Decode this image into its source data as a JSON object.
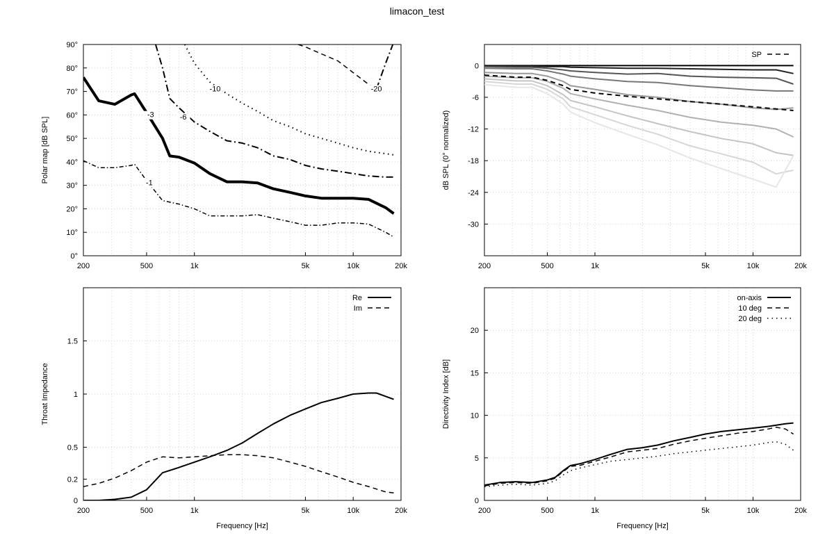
{
  "page": {
    "title": "limacon_test"
  },
  "colors": {
    "line": "#000000",
    "grid": "#bbbbbb",
    "background": "#ffffff"
  },
  "chart_data": [
    {
      "id": "polar_map",
      "type": "line",
      "subtype": "contour",
      "xlabel": "",
      "ylabel": "Polar map [dB SPL]",
      "xscale": "log",
      "xlim": [
        200,
        20000
      ],
      "ylim": [
        0,
        90
      ],
      "xticks": [
        200,
        500,
        1000,
        5000,
        10000,
        20000
      ],
      "xtick_labels": [
        "200",
        "500",
        "1k",
        "5k",
        "10k",
        "20k"
      ],
      "yticks": [
        0,
        10,
        20,
        30,
        40,
        50,
        60,
        70,
        80,
        90
      ],
      "ytick_labels": [
        "0°",
        "10°",
        "20°",
        "30°",
        "40°",
        "50°",
        "60°",
        "70°",
        "80°",
        "90°"
      ],
      "grid": true,
      "series": [
        {
          "label": "-1",
          "style": "dashdot-fine",
          "width": 1.5,
          "x": [
            200,
            250,
            315,
            400,
            420,
            500,
            630,
            800,
            1000,
            1250,
            1600,
            2000,
            2500,
            3150,
            4000,
            5000,
            6300,
            8000,
            10000,
            12500,
            16000,
            18000
          ],
          "y": [
            40.5,
            37.5,
            37.5,
            38.5,
            39,
            32,
            23.5,
            22,
            20,
            17,
            17,
            17,
            17.5,
            16,
            14.5,
            13,
            13,
            14,
            14,
            13.5,
            10,
            8
          ]
        },
        {
          "label": "-3",
          "style": "solid",
          "width": 4,
          "x": [
            200,
            250,
            315,
            400,
            420,
            500,
            630,
            700,
            800,
            1000,
            1250,
            1600,
            2000,
            2500,
            3150,
            4000,
            5000,
            6300,
            8000,
            10000,
            12500,
            16000,
            18000
          ],
          "y": [
            76,
            66,
            64.5,
            68.5,
            69,
            61,
            50,
            42.5,
            42,
            39.5,
            35,
            31.5,
            31.5,
            31,
            28.5,
            27,
            25.5,
            24.5,
            24.5,
            24.5,
            24,
            20.5,
            18
          ]
        },
        {
          "label": "-6",
          "style": "dashdot",
          "width": 2,
          "x": [
            570,
            630,
            700,
            800,
            1000,
            1250,
            1600,
            2000,
            2500,
            3150,
            4000,
            5000,
            6300,
            8000,
            10000,
            12500,
            16000,
            18000
          ],
          "y": [
            90,
            80,
            67,
            63,
            57,
            53,
            49,
            48,
            46,
            42.5,
            41,
            38.5,
            37,
            36,
            35,
            34,
            33.5,
            33.5
          ]
        },
        {
          "label": "-10",
          "style": "dotted",
          "width": 2,
          "x": [
            870,
            1000,
            1250,
            1600,
            2000,
            2500,
            3150,
            4000,
            5000,
            6300,
            8000,
            10000,
            12500,
            16000,
            18000
          ],
          "y": [
            90,
            82,
            74,
            69,
            65,
            61.5,
            57.5,
            55,
            52,
            50,
            48,
            46,
            44.5,
            43.5,
            43
          ]
        },
        {
          "label": "-20",
          "style": "dashed",
          "width": 1.5,
          "x": [
            4500,
            5000,
            6300,
            8000,
            10000,
            12500,
            14000
          ],
          "y": [
            90,
            89,
            86,
            83,
            78,
            73,
            71
          ]
        },
        {
          "label": "",
          "style": "dashdot",
          "width": 2,
          "x": [
            14000,
            16000,
            18000
          ],
          "y": [
            71,
            82,
            91
          ]
        }
      ],
      "contour_labels": [
        {
          "text": "-1",
          "x": 520,
          "y": 30
        },
        {
          "text": "-3",
          "x": 530,
          "y": 59
        },
        {
          "text": "-6",
          "x": 850,
          "y": 58
        },
        {
          "text": "-10",
          "x": 1350,
          "y": 70
        },
        {
          "text": "-20",
          "x": 14000,
          "y": 70
        }
      ]
    },
    {
      "id": "normalized_spl",
      "type": "line",
      "xlabel": "",
      "ylabel": "dB SPL (0° normalized)",
      "xscale": "log",
      "xlim": [
        200,
        20000
      ],
      "ylim": [
        -36,
        4
      ],
      "xticks": [
        200,
        500,
        1000,
        5000,
        10000,
        20000
      ],
      "xtick_labels": [
        "200",
        "500",
        "1k",
        "5k",
        "10k",
        "20k"
      ],
      "yticks": [
        0,
        -6,
        -12,
        -18,
        -24,
        -30
      ],
      "ytick_labels": [
        "0",
        "-6",
        "-12",
        "-18",
        "-24",
        "-30"
      ],
      "grid": true,
      "legend": {
        "position": "top-right",
        "entries": [
          {
            "label": "SP",
            "style": "dashed"
          }
        ]
      },
      "x": [
        200,
        315,
        400,
        500,
        630,
        700,
        1000,
        1600,
        2500,
        4000,
        6300,
        10000,
        14000,
        18000
      ],
      "series": [
        {
          "shade": "#000000",
          "style": "solid",
          "values": [
            0,
            0,
            0,
            0,
            0,
            0,
            0,
            0,
            0,
            0,
            0,
            0,
            0,
            0
          ]
        },
        {
          "shade": "#222222",
          "style": "solid",
          "values": [
            -0.1,
            -0.1,
            -0.1,
            -0.2,
            -0.2,
            -0.3,
            -0.4,
            -0.5,
            -0.5,
            -0.6,
            -0.7,
            -0.8,
            -0.8,
            -1.5
          ]
        },
        {
          "shade": "#555555",
          "style": "solid",
          "values": [
            -0.2,
            -0.3,
            -0.3,
            -0.5,
            -0.8,
            -1.0,
            -1.3,
            -1.6,
            -1.5,
            -2.0,
            -2.2,
            -2.3,
            -2.4,
            -3.5
          ]
        },
        {
          "shade": "#777777",
          "style": "solid",
          "values": [
            -0.5,
            -0.6,
            -0.6,
            -1.0,
            -1.6,
            -2.0,
            -2.5,
            -3.0,
            -3.2,
            -3.8,
            -4.2,
            -4.6,
            -4.8,
            -4.8
          ]
        },
        {
          "shade": "#999999",
          "style": "solid",
          "values": [
            -1.3,
            -1.5,
            -1.5,
            -2.0,
            -3.0,
            -3.8,
            -4.5,
            -5.5,
            -6.0,
            -6.8,
            -7.3,
            -8.0,
            -8.3,
            -8.0
          ]
        },
        {
          "shade": "#b0b0b0",
          "style": "solid",
          "values": [
            -2.0,
            -2.3,
            -2.3,
            -3.0,
            -4.3,
            -5.3,
            -6.3,
            -7.5,
            -8.5,
            -9.8,
            -10.7,
            -11.3,
            -12.0,
            -13.5
          ]
        },
        {
          "shade": "#c4c4c4",
          "style": "solid",
          "values": [
            -2.5,
            -2.9,
            -2.9,
            -3.8,
            -5.5,
            -6.6,
            -7.8,
            -9.5,
            -11.0,
            -12.5,
            -13.8,
            -14.8,
            -16.5,
            -17.0
          ]
        },
        {
          "shade": "#d6d6d6",
          "style": "solid",
          "values": [
            -3.0,
            -3.5,
            -3.5,
            -4.5,
            -6.3,
            -7.8,
            -9.3,
            -11.3,
            -13.0,
            -15.2,
            -16.7,
            -18.3,
            -20.5,
            -19.8
          ]
        },
        {
          "shade": "#e6e6e6",
          "style": "solid",
          "values": [
            -3.6,
            -4.1,
            -4.1,
            -5.3,
            -7.3,
            -8.8,
            -10.8,
            -13.0,
            -15.0,
            -17.5,
            -19.5,
            -21.5,
            -23.0,
            -17.0
          ]
        },
        {
          "name": "SP",
          "shade": "#000000",
          "style": "dashed",
          "values": [
            -1.8,
            -2.2,
            -2.2,
            -2.8,
            -3.8,
            -4.5,
            -5.2,
            -5.8,
            -6.3,
            -6.8,
            -7.3,
            -7.8,
            -8.2,
            -8.5
          ]
        }
      ]
    },
    {
      "id": "throat_impedance",
      "type": "line",
      "xlabel": "Frequency [Hz]",
      "ylabel": "Throat Impedance",
      "xscale": "log",
      "xlim": [
        200,
        20000
      ],
      "ylim": [
        0,
        2
      ],
      "xticks": [
        200,
        500,
        1000,
        5000,
        10000,
        20000
      ],
      "xtick_labels": [
        "200",
        "500",
        "1k",
        "5k",
        "10k",
        "20k"
      ],
      "yticks": [
        0,
        0.2,
        0.5,
        1,
        1.5
      ],
      "ytick_labels": [
        "0",
        "0.2",
        "0.5",
        "1",
        "1.5"
      ],
      "grid": true,
      "legend": {
        "position": "top-right"
      },
      "series": [
        {
          "name": "Re",
          "style": "solid",
          "x": [
            200,
            250,
            315,
            400,
            500,
            630,
            800,
            1000,
            1250,
            1600,
            2000,
            2500,
            3150,
            4000,
            5000,
            6300,
            8000,
            10000,
            12500,
            14000,
            18000
          ],
          "values": [
            0,
            0,
            0.01,
            0.03,
            0.1,
            0.26,
            0.31,
            0.36,
            0.41,
            0.47,
            0.54,
            0.63,
            0.72,
            0.8,
            0.86,
            0.92,
            0.96,
            1.0,
            1.01,
            1.01,
            0.95
          ]
        },
        {
          "name": "Im",
          "style": "dashed",
          "x": [
            200,
            250,
            315,
            400,
            500,
            630,
            800,
            1000,
            1250,
            1600,
            2000,
            2500,
            3150,
            4000,
            5000,
            6300,
            8000,
            10000,
            12500,
            16000,
            18000
          ],
          "values": [
            0.13,
            0.16,
            0.21,
            0.28,
            0.36,
            0.41,
            0.4,
            0.41,
            0.42,
            0.43,
            0.43,
            0.42,
            0.4,
            0.36,
            0.32,
            0.27,
            0.22,
            0.17,
            0.13,
            0.08,
            0.07
          ]
        }
      ]
    },
    {
      "id": "directivity_index",
      "type": "line",
      "xlabel": "Frequency [Hz]",
      "ylabel": "Directivity Index [dB]",
      "xscale": "log",
      "xlim": [
        200,
        20000
      ],
      "ylim": [
        0,
        25
      ],
      "xticks": [
        200,
        500,
        1000,
        5000,
        10000,
        20000
      ],
      "xtick_labels": [
        "200",
        "500",
        "1k",
        "5k",
        "10k",
        "20k"
      ],
      "yticks": [
        0,
        5,
        10,
        15,
        20
      ],
      "ytick_labels": [
        "0",
        "5",
        "10",
        "15",
        "20"
      ],
      "grid": true,
      "legend": {
        "position": "top-right"
      },
      "series": [
        {
          "name": "on-axis",
          "style": "solid",
          "x": [
            200,
            250,
            315,
            400,
            500,
            560,
            630,
            700,
            800,
            1000,
            1250,
            1600,
            2000,
            2500,
            3150,
            4000,
            5000,
            6300,
            8000,
            10000,
            12500,
            16000,
            18000
          ],
          "values": [
            1.8,
            2.1,
            2.2,
            2.1,
            2.4,
            2.7,
            3.5,
            4.1,
            4.3,
            4.8,
            5.4,
            6.0,
            6.2,
            6.5,
            7.0,
            7.4,
            7.8,
            8.1,
            8.3,
            8.5,
            8.7,
            9.0,
            9.1
          ]
        },
        {
          "name": "10 deg",
          "style": "dashed",
          "x": [
            200,
            250,
            315,
            400,
            500,
            560,
            630,
            700,
            800,
            1000,
            1250,
            1600,
            2000,
            2500,
            3150,
            4000,
            5000,
            6300,
            8000,
            10000,
            12500,
            14000,
            16000,
            18000
          ],
          "values": [
            1.7,
            2.0,
            2.1,
            2.0,
            2.3,
            2.6,
            3.4,
            4.0,
            4.1,
            4.6,
            5.1,
            5.7,
            5.9,
            6.1,
            6.6,
            7.0,
            7.3,
            7.6,
            7.9,
            8.1,
            8.4,
            8.6,
            8.4,
            7.8
          ]
        },
        {
          "name": "20 deg",
          "style": "dotted",
          "x": [
            200,
            250,
            315,
            400,
            500,
            560,
            630,
            700,
            800,
            1000,
            1250,
            1600,
            2000,
            2500,
            3150,
            4000,
            5000,
            6300,
            8000,
            10000,
            12500,
            14000,
            16000,
            18000
          ],
          "values": [
            1.6,
            1.8,
            1.9,
            1.8,
            2.0,
            2.3,
            3.0,
            3.5,
            3.8,
            4.2,
            4.6,
            4.8,
            5.0,
            5.2,
            5.5,
            5.7,
            5.9,
            6.1,
            6.3,
            6.5,
            6.8,
            6.9,
            6.6,
            5.9
          ]
        }
      ]
    }
  ]
}
